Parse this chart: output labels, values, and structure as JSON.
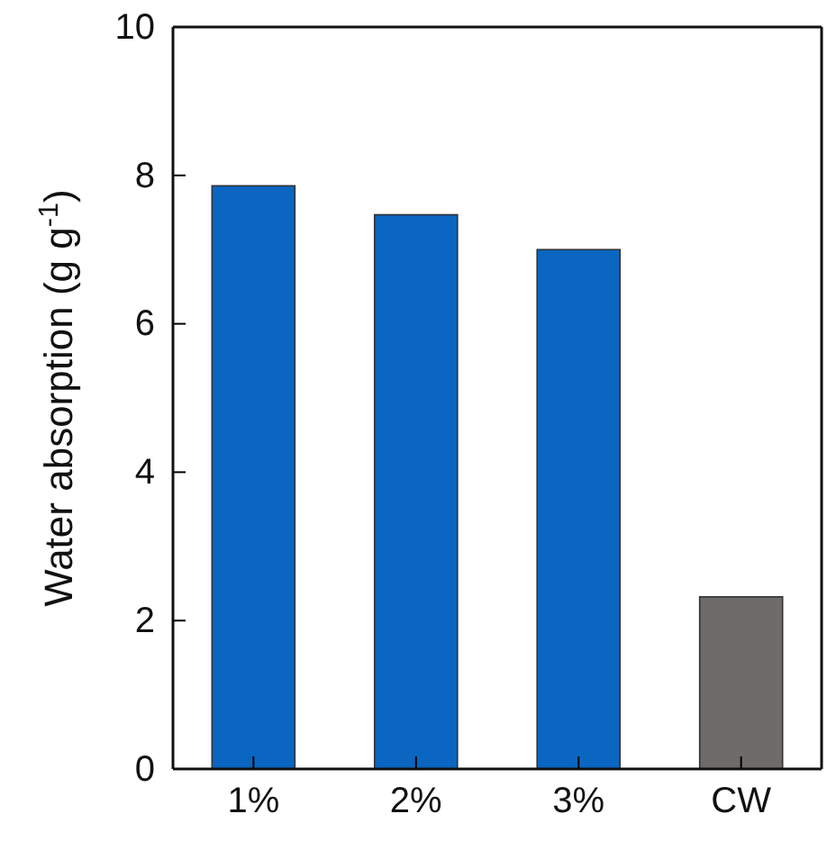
{
  "chart_data": {
    "type": "bar",
    "ylabel": "Water absorption (g g$^{-1}$)",
    "categories": [
      "1%",
      "2%",
      "3%",
      "CW"
    ],
    "values": [
      7.86,
      7.47,
      7.0,
      2.32
    ],
    "colors": [
      "#0a66c0",
      "#0a66c0",
      "#0a66c0",
      "#6f6b6b"
    ],
    "ylim": [
      0,
      10
    ],
    "yticks": [
      0,
      2,
      4,
      6,
      8,
      10
    ],
    "grid": false
  }
}
